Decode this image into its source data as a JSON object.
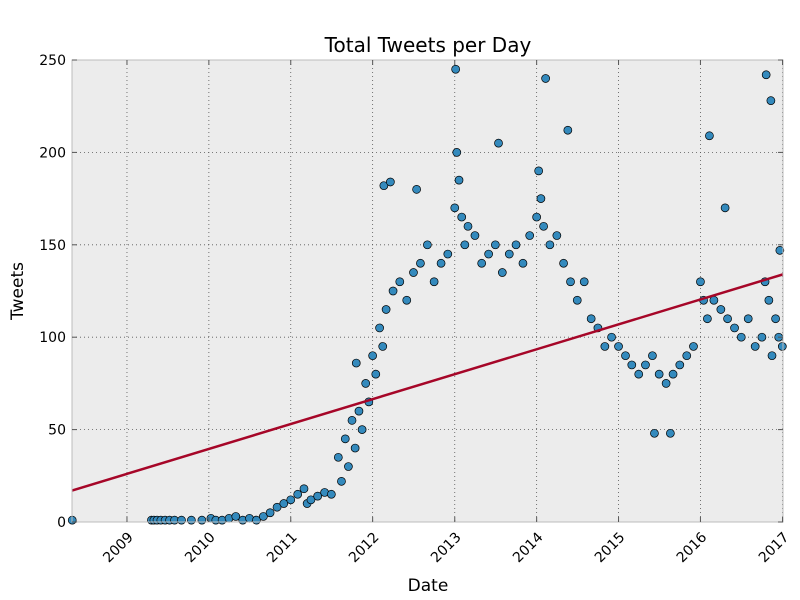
{
  "chart_data": {
    "type": "scatter",
    "title": "Total Tweets per Day",
    "xlabel": "Date",
    "ylabel": "Tweets",
    "x_axis": "date",
    "xlim": [
      "2008-05-01",
      "2017-01-03"
    ],
    "ylim": [
      0,
      250
    ],
    "x_ticks": [
      "2009",
      "2010",
      "2011",
      "2012",
      "2013",
      "2014",
      "2015",
      "2016",
      "2017"
    ],
    "y_ticks": [
      "0",
      "50",
      "100",
      "150",
      "200",
      "250"
    ],
    "grid": true,
    "grid_style": "dotted",
    "legend": "none",
    "colors": {
      "plot_background": "#ececec",
      "marker_fill": "#348abd",
      "marker_edge": "#000000",
      "trend_line": "#a60628"
    },
    "series": [
      {
        "kind": "scatter",
        "x": [
          "2008-05-02",
          "2009-04-20",
          "2009-05-01",
          "2009-05-15",
          "2009-06-01",
          "2009-06-20",
          "2009-07-10",
          "2009-08-01",
          "2009-09-01",
          "2009-10-15",
          "2009-12-01",
          "2010-01-10",
          "2010-02-01",
          "2010-03-01",
          "2010-04-01",
          "2010-05-01",
          "2010-06-01",
          "2010-07-01",
          "2010-08-01",
          "2010-09-01",
          "2010-10-01",
          "2010-11-01",
          "2010-12-01",
          "2011-01-01",
          "2011-02-01",
          "2011-03-01",
          "2011-03-15",
          "2011-04-01",
          "2011-05-01",
          "2011-06-01",
          "2011-07-01",
          "2011-08-01",
          "2011-08-15",
          "2011-09-01",
          "2011-09-15",
          "2011-10-01",
          "2011-10-15",
          "2011-11-01",
          "2011-11-15",
          "2011-12-01",
          "2011-12-15",
          "2012-01-01",
          "2012-01-15",
          "2012-02-01",
          "2012-02-15",
          "2012-03-01",
          "2012-04-01",
          "2012-05-01",
          "2012-06-01",
          "2012-07-01",
          "2012-08-01",
          "2012-09-01",
          "2012-10-01",
          "2012-11-01",
          "2012-12-01",
          "2013-01-01",
          "2013-01-10",
          "2013-01-20",
          "2013-02-01",
          "2013-02-15",
          "2013-03-01",
          "2013-04-01",
          "2013-05-01",
          "2013-06-01",
          "2013-07-01",
          "2013-08-01",
          "2013-09-01",
          "2013-10-01",
          "2013-11-01",
          "2013-12-01",
          "2014-01-01",
          "2014-01-10",
          "2014-01-20",
          "2014-02-01",
          "2014-03-01",
          "2014-04-01",
          "2014-05-01",
          "2014-06-01",
          "2014-07-01",
          "2014-08-01",
          "2014-09-01",
          "2014-10-01",
          "2014-11-01",
          "2014-12-01",
          "2015-01-01",
          "2015-02-01",
          "2015-03-01",
          "2015-04-01",
          "2015-05-01",
          "2015-06-01",
          "2015-07-01",
          "2015-08-01",
          "2015-09-01",
          "2015-10-01",
          "2015-11-01",
          "2015-12-01",
          "2016-01-01",
          "2016-01-15",
          "2016-02-01",
          "2016-03-01",
          "2016-04-01",
          "2016-05-01",
          "2016-06-01",
          "2016-07-01",
          "2016-08-01",
          "2016-09-01",
          "2016-10-01",
          "2016-10-15",
          "2016-11-01",
          "2016-11-15",
          "2016-12-01",
          "2016-12-15",
          "2016-12-31",
          "2013-01-05",
          "2016-10-20",
          "2016-11-10",
          "2011-10-20",
          "2012-02-20",
          "2012-03-20",
          "2015-06-10",
          "2015-08-20",
          "2016-02-10",
          "2016-04-20",
          "2016-12-20",
          "2014-02-10",
          "2014-05-20",
          "2013-07-15",
          "2012-07-15"
        ],
        "y": [
          1,
          1,
          1,
          1,
          1,
          1,
          1,
          1,
          1,
          1,
          1,
          2,
          1,
          1,
          2,
          3,
          1,
          2,
          1,
          3,
          5,
          8,
          10,
          12,
          15,
          18,
          10,
          12,
          14,
          16,
          15,
          35,
          22,
          45,
          30,
          55,
          40,
          60,
          50,
          75,
          65,
          90,
          80,
          105,
          95,
          115,
          125,
          130,
          120,
          135,
          140,
          150,
          130,
          140,
          145,
          170,
          200,
          185,
          165,
          150,
          160,
          155,
          140,
          145,
          150,
          135,
          145,
          150,
          140,
          155,
          165,
          190,
          175,
          160,
          150,
          155,
          140,
          130,
          120,
          130,
          110,
          105,
          95,
          100,
          95,
          90,
          85,
          80,
          85,
          90,
          80,
          75,
          80,
          85,
          90,
          95,
          130,
          120,
          110,
          120,
          115,
          110,
          105,
          100,
          110,
          95,
          100,
          130,
          120,
          90,
          110,
          100,
          95,
          245,
          242,
          228,
          86,
          182,
          184,
          48,
          48,
          209,
          170,
          147,
          240,
          212,
          205,
          180
        ]
      },
      {
        "kind": "trend_line",
        "x": [
          "2008-05-01",
          "2017-01-03"
        ],
        "y": [
          17,
          134
        ]
      }
    ]
  }
}
